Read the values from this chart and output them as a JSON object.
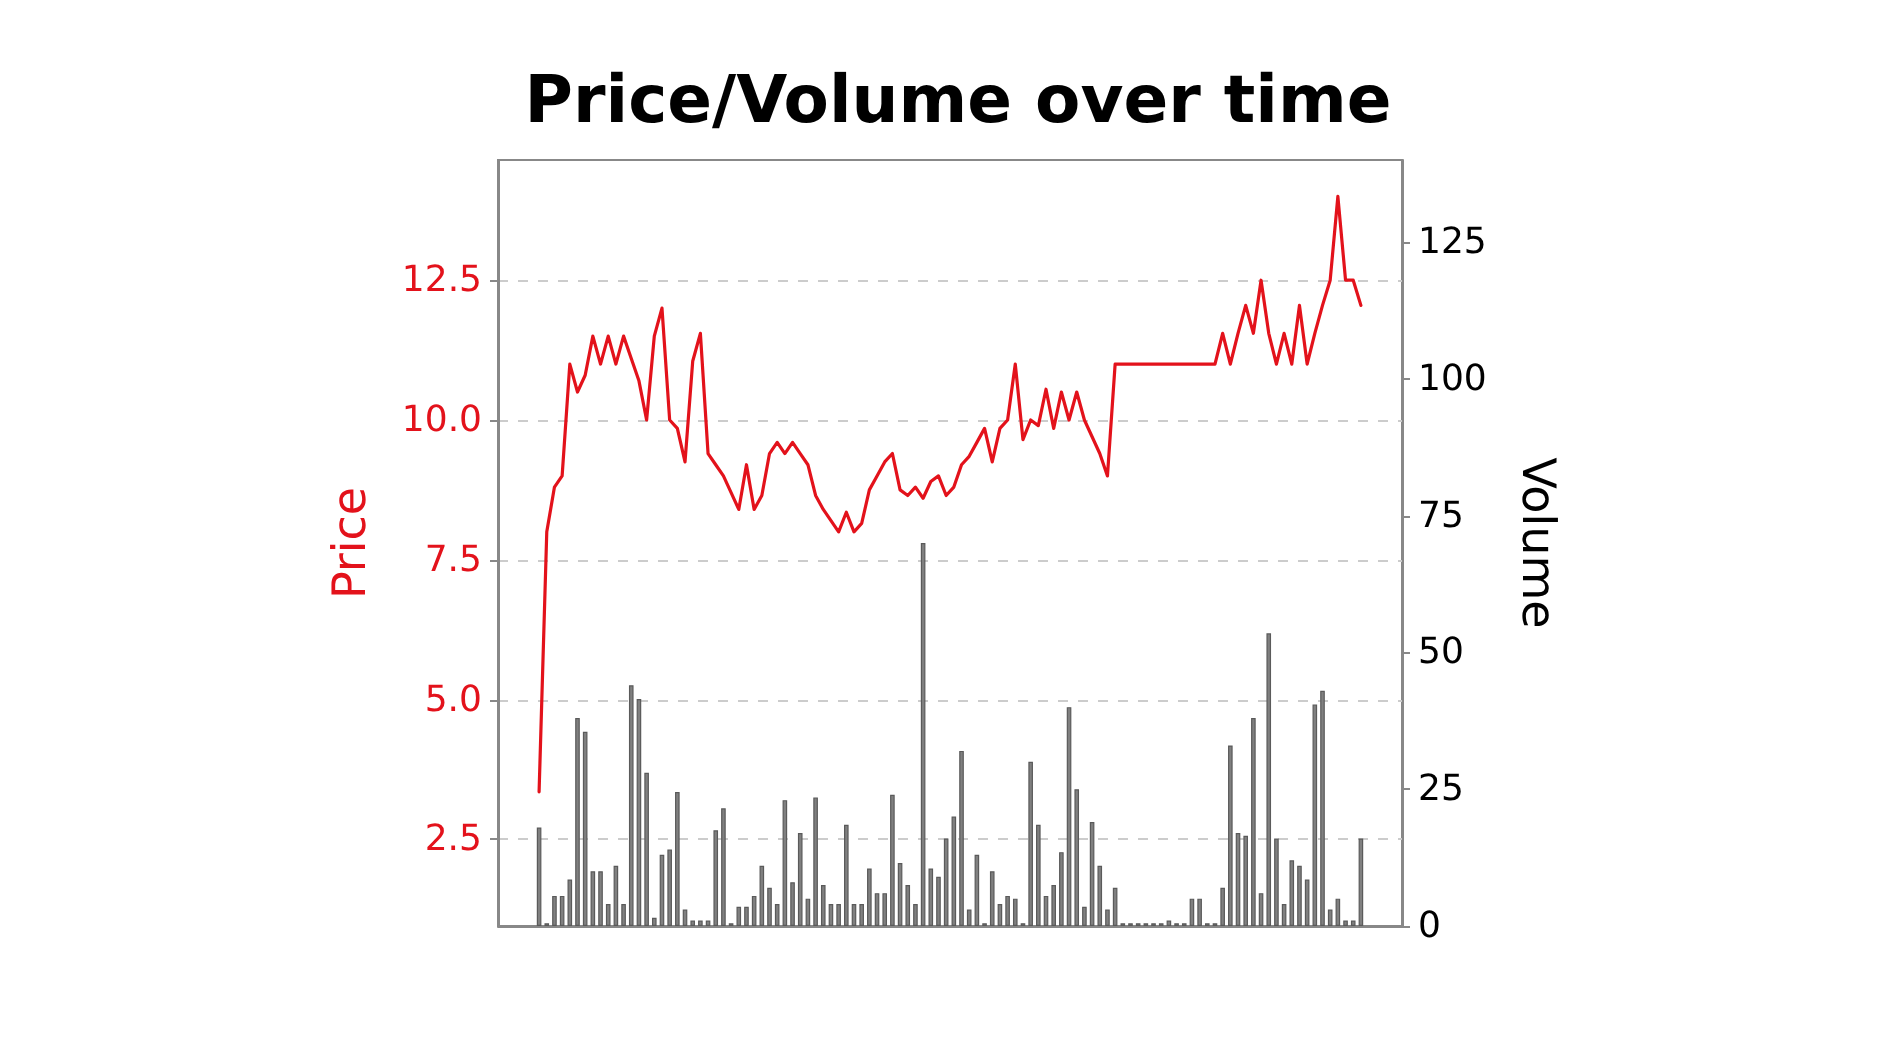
{
  "chart_data": {
    "type": "line",
    "title": "Price/Volume over time",
    "ylabel": "Price",
    "y2label": "Volume",
    "categories": [
      null,
      null,
      null,
      null,
      null,
      null,
      null,
      null,
      null,
      null,
      null,
      null,
      null,
      null,
      null,
      null,
      null,
      null,
      null,
      null,
      null,
      null,
      null,
      null,
      null,
      null,
      null,
      null,
      null,
      null,
      null,
      null,
      null,
      null,
      null,
      null,
      null,
      null,
      null,
      null,
      null,
      null,
      null,
      null,
      null,
      null,
      null,
      null,
      null,
      null,
      null,
      null,
      null,
      null,
      null,
      null,
      null,
      null,
      null,
      null,
      null,
      null,
      null,
      null,
      null,
      null,
      null,
      null,
      null,
      null,
      null,
      null,
      null,
      null,
      null,
      null,
      null,
      null,
      null,
      null,
      null,
      null,
      null,
      null,
      null,
      null,
      null,
      null,
      null,
      null,
      null,
      null,
      null,
      null,
      null,
      null,
      null,
      null,
      null,
      null,
      null,
      null,
      null,
      null,
      null,
      null,
      null,
      null
    ],
    "series": [
      {
        "color": "#e3121b",
        "values": [
          3.35,
          8.0,
          8.8,
          9.0,
          11.0,
          10.5,
          10.8,
          11.5,
          11.0,
          11.5,
          11.0,
          11.5,
          11.1,
          10.7,
          10.0,
          11.5,
          12.0,
          10.0,
          9.85,
          9.25,
          11.05,
          11.55,
          9.4,
          9.2,
          9.0,
          8.7,
          8.4,
          9.2,
          8.4,
          8.65,
          9.4,
          9.6,
          9.4,
          9.6,
          9.4,
          9.2,
          8.65,
          8.4,
          8.2,
          8.0,
          8.35,
          8.0,
          8.15,
          8.75,
          9.0,
          9.25,
          9.4,
          8.75,
          8.65,
          8.8,
          8.6,
          8.9,
          9.0,
          8.65,
          8.8,
          9.2,
          9.35,
          9.6,
          9.85,
          9.25,
          9.85,
          10.0,
          11.0,
          9.65,
          10.0,
          9.9,
          10.55,
          9.85,
          10.5,
          10.0,
          10.5,
          10.0,
          9.7,
          9.4,
          9.0,
          11.0,
          11.0,
          11.0,
          11.0,
          11.0,
          11.0,
          11.0,
          11.0,
          11.0,
          11.0,
          11.0,
          11.0,
          11.0,
          11.0,
          11.55,
          11.0,
          11.55,
          12.05,
          11.55,
          12.5,
          11.55,
          11.0,
          11.55,
          11.0,
          12.05,
          11.0,
          11.55,
          12.05,
          12.5,
          14.0,
          12.5,
          12.5,
          12.05
        ]
      },
      {
        "type": "bar",
        "axis": "y2",
        "color": "#808080",
        "values": [
          18,
          0.5,
          5.5,
          5.5,
          8.5,
          38,
          35.5,
          10,
          10,
          4,
          11,
          4,
          44,
          41.5,
          28,
          1.5,
          13,
          14,
          24.5,
          3,
          1,
          1,
          1,
          17.5,
          21.5,
          0.5,
          3.5,
          3.5,
          5.5,
          11,
          7,
          4,
          23,
          8,
          17,
          5,
          23.5,
          7.5,
          4,
          4,
          18.5,
          4,
          4,
          10.5,
          6,
          6,
          24,
          11.5,
          7.5,
          4,
          70,
          10.5,
          9,
          16,
          20,
          32,
          3,
          13,
          0.5,
          10,
          4,
          5.5,
          5,
          0.5,
          30,
          18.5,
          5.5,
          7.5,
          13.5,
          40,
          25,
          3.5,
          19,
          11,
          3,
          7,
          0.5,
          0.5,
          0.5,
          0.5,
          0.5,
          0.5,
          1,
          0.5,
          0.5,
          5,
          5,
          0.5,
          0.5,
          7,
          33,
          17,
          16.5,
          38,
          6,
          53.5,
          16,
          4,
          12,
          11,
          8.5,
          40.5,
          43,
          3,
          5,
          1,
          1,
          16
        ]
      }
    ],
    "ylim": [
      0.95,
      14.65
    ],
    "yticks": [
      2.5,
      {
        "value": 5,
        "label": "5.0"
      },
      7.5,
      {
        "value": 10,
        "label": "10.0"
      },
      12.5
    ],
    "y2lim": [
      0,
      140
    ],
    "y2ticks": [
      0,
      25,
      50,
      75,
      100,
      125
    ],
    "grid": "y",
    "marker": "none",
    "line_style": "solid"
  }
}
